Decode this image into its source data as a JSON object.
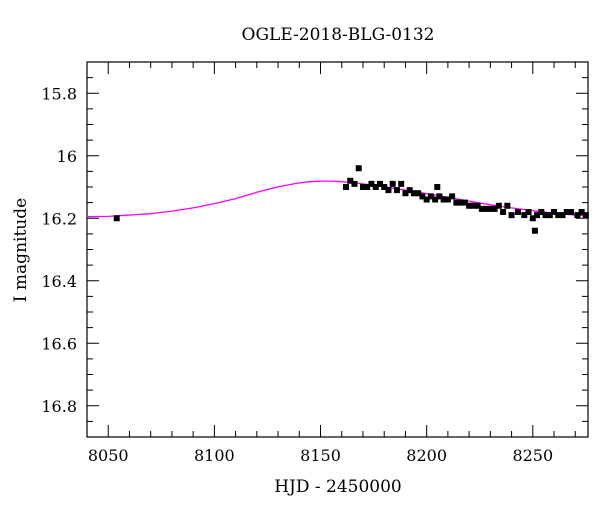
{
  "chart_data": {
    "type": "scatter",
    "title": "OGLE-2018-BLG-0132",
    "xlabel": "HJD - 2450000",
    "ylabel": "I magnitude",
    "xlim": [
      8040,
      8276
    ],
    "ylim": [
      15.7,
      16.9
    ],
    "y_inverted": true,
    "grid": false,
    "x_ticks": [
      8050,
      8100,
      8150,
      8200,
      8250
    ],
    "x_tick_labels": [
      "8050",
      "8100",
      "8150",
      "8200",
      "8250"
    ],
    "y_ticks": [
      15.8,
      16.0,
      16.2,
      16.4,
      16.6,
      16.8
    ],
    "y_tick_labels": [
      "15.8",
      "16",
      "16.2",
      "16.4",
      "16.6",
      "16.8"
    ],
    "series": [
      {
        "kind": "points",
        "color": "#000000",
        "x": [
          8054,
          8162,
          8164,
          8166,
          8168,
          8170,
          8172,
          8174,
          8176,
          8178,
          8180,
          8182,
          8184,
          8186,
          8188,
          8190,
          8192,
          8194,
          8196,
          8198,
          8200,
          8202,
          8204,
          8205,
          8206,
          8208,
          8210,
          8212,
          8214,
          8216,
          8218,
          8220,
          8222,
          8224,
          8226,
          8228,
          8230,
          8232,
          8234,
          8236,
          8238,
          8240,
          8243,
          8246,
          8248,
          8250,
          8251,
          8252,
          8254,
          8256,
          8258,
          8260,
          8262,
          8264,
          8266,
          8268,
          8271,
          8273,
          8275
        ],
        "y": [
          16.2,
          16.1,
          16.08,
          16.09,
          16.04,
          16.1,
          16.1,
          16.09,
          16.1,
          16.09,
          16.1,
          16.11,
          16.09,
          16.11,
          16.09,
          16.12,
          16.11,
          16.12,
          16.12,
          16.13,
          16.14,
          16.13,
          16.14,
          16.1,
          16.13,
          16.14,
          16.14,
          16.13,
          16.15,
          16.15,
          16.15,
          16.16,
          16.16,
          16.16,
          16.17,
          16.17,
          16.17,
          16.17,
          16.16,
          16.18,
          16.16,
          16.19,
          16.18,
          16.19,
          16.18,
          16.2,
          16.24,
          16.19,
          16.18,
          16.19,
          16.19,
          16.18,
          16.19,
          16.19,
          16.18,
          16.18,
          16.19,
          16.18,
          16.19
        ]
      },
      {
        "kind": "model",
        "color": "#ff00ff",
        "x": [
          8040,
          8050,
          8060,
          8070,
          8080,
          8090,
          8100,
          8110,
          8120,
          8130,
          8140,
          8145,
          8150,
          8155,
          8160,
          8165,
          8170,
          8180,
          8190,
          8200,
          8210,
          8220,
          8230,
          8240,
          8250,
          8260,
          8270,
          8276
        ],
        "y": [
          16.195,
          16.194,
          16.19,
          16.185,
          16.177,
          16.167,
          16.153,
          16.137,
          16.117,
          16.099,
          16.087,
          16.083,
          16.081,
          16.081,
          16.083,
          16.086,
          16.09,
          16.099,
          16.11,
          16.121,
          16.133,
          16.145,
          16.157,
          16.167,
          16.176,
          16.184,
          16.19,
          16.192
        ]
      }
    ]
  }
}
